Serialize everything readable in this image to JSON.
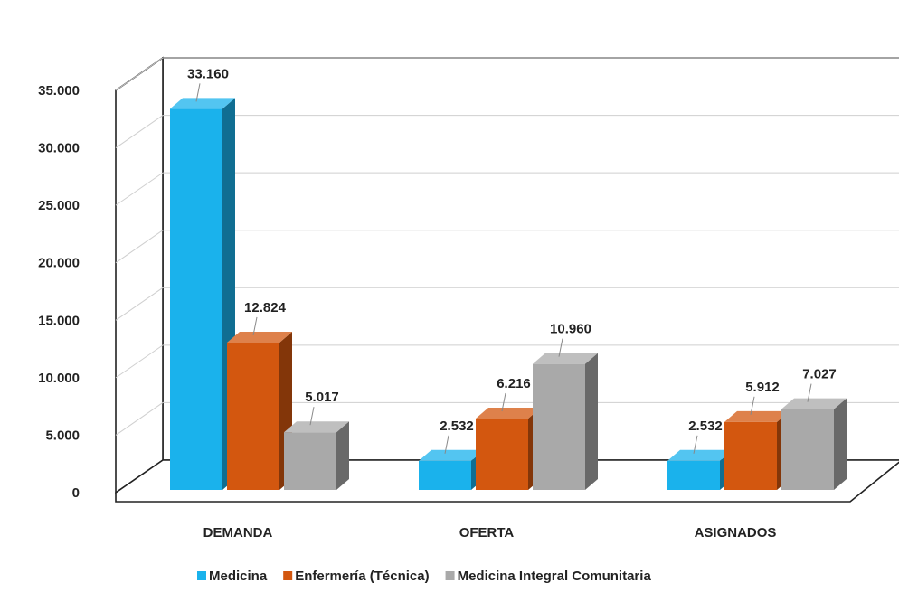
{
  "chart_data": {
    "type": "bar",
    "title": "",
    "xlabel": "",
    "ylabel": "",
    "categories": [
      "DEMANDA",
      "OFERTA",
      "ASIGNADOS"
    ],
    "series": [
      {
        "name": "Medicina",
        "values": [
          33160,
          2532,
          2532
        ],
        "labels": [
          "33.160",
          "2.532",
          "2.532"
        ],
        "color": "#1ab2ec"
      },
      {
        "name": "Enfermería (Técnica)",
        "values": [
          12824,
          6216,
          5912
        ],
        "labels": [
          "12.824",
          "6.216",
          "5.912"
        ],
        "color": "#d3570f"
      },
      {
        "name": "Medicina Integral Comunitaria",
        "values": [
          5017,
          10960,
          7027
        ],
        "labels": [
          "5.017",
          "10.960",
          "7.027"
        ],
        "color": "#a9a9a9"
      }
    ],
    "ylim": [
      0,
      35000
    ],
    "yticks": [
      0,
      5000,
      10000,
      15000,
      20000,
      25000,
      30000,
      35000
    ],
    "ytick_labels": [
      "0",
      "5.000",
      "10.000",
      "15.000",
      "20.000",
      "25.000",
      "30.000",
      "35.000"
    ],
    "grid": true,
    "legend": "bottom",
    "style": "3d-column"
  }
}
